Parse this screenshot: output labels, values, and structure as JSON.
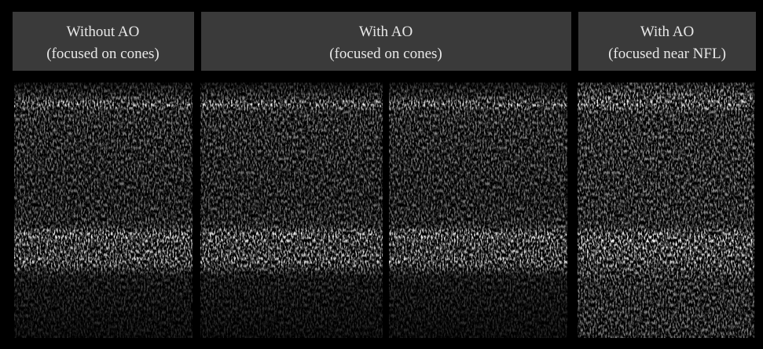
{
  "panels": [
    {
      "title": [
        "Without AO",
        "(focused on cones)"
      ]
    },
    {
      "title": [
        "With AO",
        "(focused on cones)"
      ]
    },
    {
      "title": [
        "With AO",
        "(focused near NFL)"
      ]
    }
  ]
}
